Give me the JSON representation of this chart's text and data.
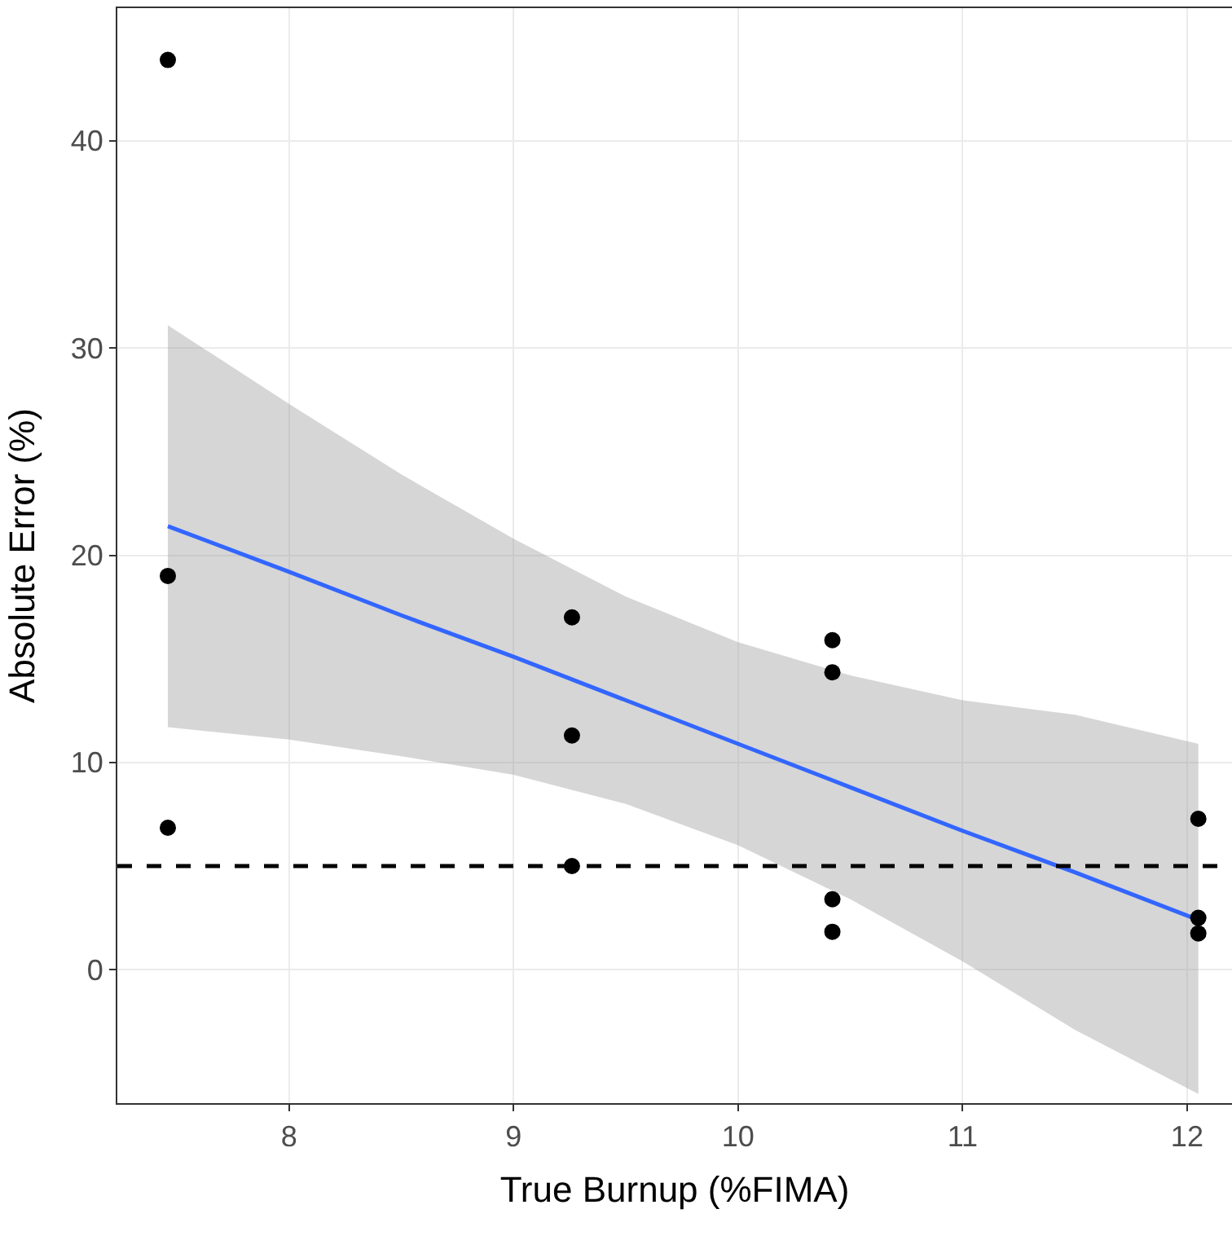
{
  "chart_data": {
    "type": "scatter",
    "xlabel": "True Burnup (%FIMA)",
    "ylabel": "Absolute Error (%)",
    "xlim": [
      7.235,
      12.2
    ],
    "xticks": [
      8,
      9,
      10,
      11,
      12
    ],
    "ylim": [
      -6.44,
      46.4
    ],
    "yticks": [
      0,
      10,
      20,
      30,
      40
    ],
    "grid": true,
    "series": [
      {
        "marker": "circle",
        "color": "#000000",
        "x": [
          7.46,
          7.46,
          7.46,
          9.26,
          9.26,
          9.26,
          10.42,
          10.42,
          10.42,
          10.42,
          12.05,
          12.05,
          12.05
        ],
        "values": [
          43.9,
          19.0,
          6.85,
          17.0,
          11.3,
          5.0,
          15.9,
          14.35,
          3.4,
          1.83,
          7.28,
          2.5,
          1.75
        ]
      },
      {
        "type": "line",
        "marker": "none",
        "color": "#3366ff",
        "line_style": "solid",
        "x": [
          7.46,
          8,
          8.5,
          9,
          9.5,
          10,
          10.5,
          11,
          11.5,
          12.05
        ],
        "values": [
          21.4,
          19.2,
          17.1,
          15.1,
          13.0,
          10.9,
          8.8,
          6.7,
          4.7,
          2.4
        ],
        "lower": [
          11.7,
          11.1,
          10.3,
          9.4,
          8.0,
          6.0,
          3.4,
          0.4,
          -2.9,
          -6.0
        ],
        "upper": [
          31.1,
          27.3,
          23.9,
          20.8,
          18.0,
          15.8,
          14.2,
          13.0,
          12.3,
          10.9
        ]
      }
    ],
    "ref_lines": [
      {
        "axis": "y",
        "value": 5,
        "color": "#000000",
        "line_style": "dashed"
      }
    ]
  }
}
